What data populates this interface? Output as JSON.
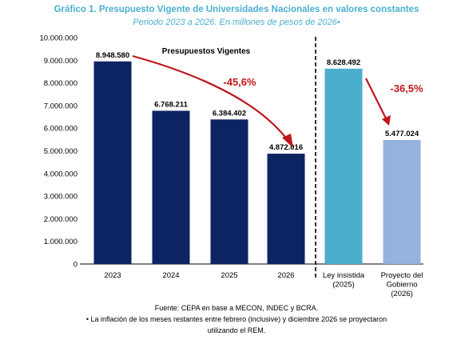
{
  "header": {
    "title": "Gráfico 1. Presupuesto Vigente de Universidades Nacionales en valores constantes",
    "subtitle": "Periodo 2023 a 2026. En millones de pesos de 2026•"
  },
  "chart_data": {
    "type": "bar",
    "title": "Gráfico 1. Presupuesto Vigente de Universidades Nacionales en valores constantes",
    "subtitle": "Periodo 2023 a 2026. En millones de pesos de 2026•",
    "xlabel": "",
    "ylabel": "",
    "ylim": [
      0,
      10000000
    ],
    "yticks": [
      "0",
      "1.000.000",
      "2.000.000",
      "3.000.000",
      "4.000.000",
      "5.000.000",
      "6.000.000",
      "7.000.000",
      "8.000.000",
      "9.000.000",
      "10.000.000"
    ],
    "grid": false,
    "categories": [
      "2023",
      "2024",
      "2025",
      "2026",
      "Ley insistida|(2025)",
      "Proyecto del|Gobierno|(2026)"
    ],
    "values": [
      8948580,
      6768211,
      6384402,
      4872016,
      8628492,
      5477024
    ],
    "value_labels": [
      "8.948.580",
      "6.768.211",
      "6.384.402",
      "4.872.016",
      "8.628.492",
      "5.477.024"
    ],
    "colors": [
      "#0d2463",
      "#0d2463",
      "#0d2463",
      "#0d2463",
      "#4bafcc",
      "#93b3dc"
    ],
    "annotations": {
      "group_label": "Presupuestos Vigentes",
      "pct_left": "-45,6%",
      "pct_right": "-36,5%",
      "arrow_color": "#c0161b"
    }
  },
  "footer": {
    "source": "Fuente: CEPA en base a MECON, INDEC y BCRA.",
    "note_line1": "• La inflación de los meses restantes entre febrero (inclusive) y diciembre 2026 se proyectaron",
    "note_line2": "utilizando el REM."
  }
}
